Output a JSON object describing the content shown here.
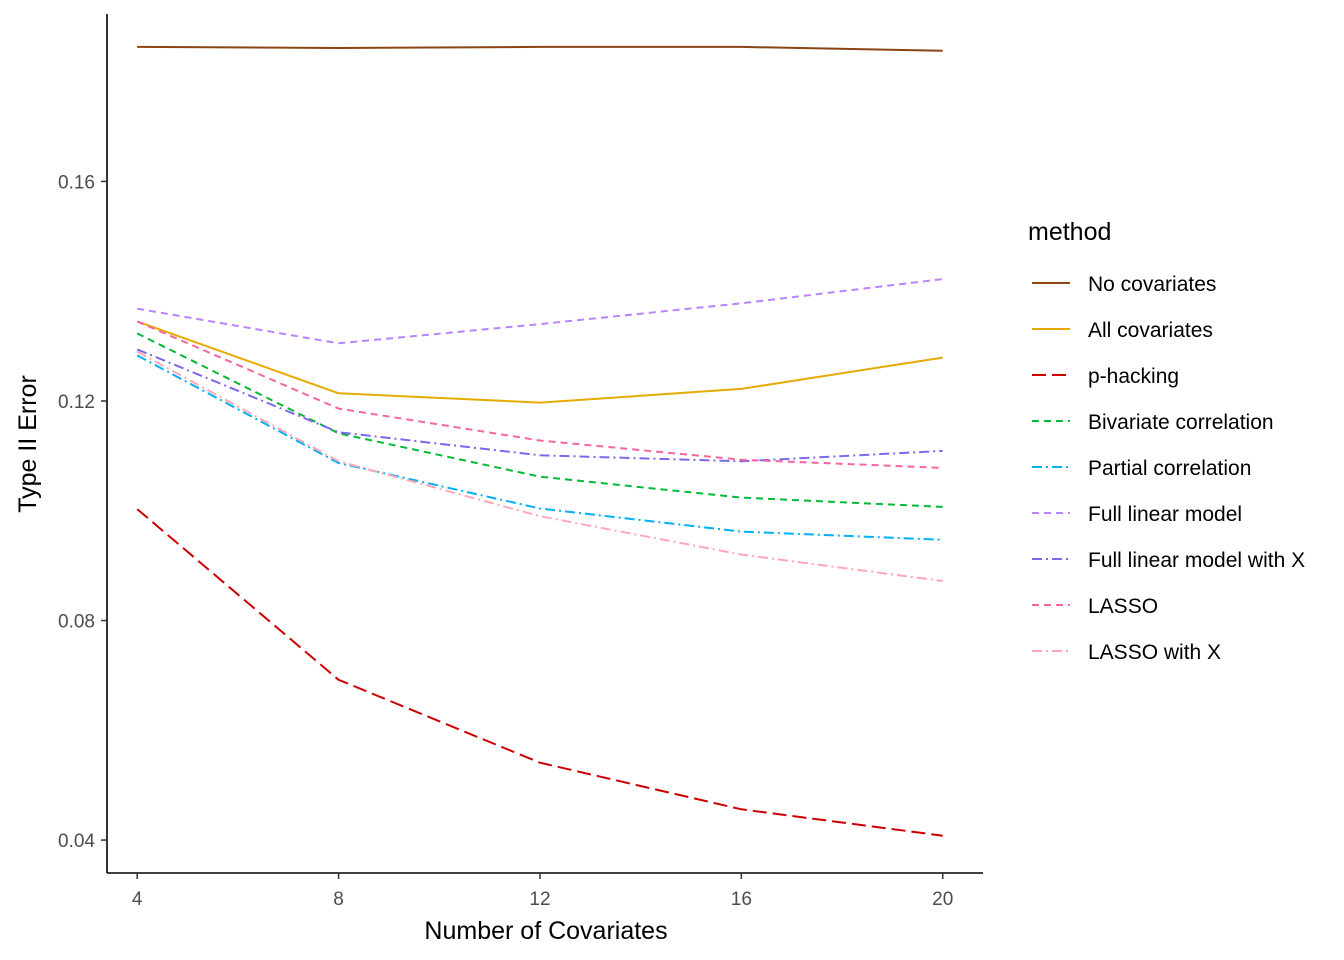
{
  "chart_data": {
    "type": "line",
    "title": "",
    "xlabel": "Number of Covariates",
    "ylabel": "Type II Error",
    "x": [
      4,
      8,
      12,
      16,
      20
    ],
    "xticks": [
      4,
      8,
      12,
      16,
      20
    ],
    "yticks": [
      0.04,
      0.08,
      0.12,
      0.16
    ],
    "ytick_labels": [
      "0.04",
      "0.08",
      "0.12",
      "0.16"
    ],
    "xlim": [
      3.4,
      20.8
    ],
    "ylim": [
      0.034,
      0.1905
    ],
    "grid": false,
    "legend": {
      "title": "method",
      "position": "right"
    },
    "series": [
      {
        "name": "No covariates",
        "color": "#8B4513",
        "dash": "solid",
        "values": [
          0.1845,
          0.1843,
          0.1845,
          0.1845,
          0.1838
        ]
      },
      {
        "name": "All covariates",
        "color": "#E6AB02",
        "dash": "solid",
        "values": [
          0.1345,
          0.1214,
          0.1197,
          0.1222,
          0.1279
        ]
      },
      {
        "name": "p-hacking",
        "color": "#CC0000",
        "dash": "longdash",
        "values": [
          0.1003,
          0.0692,
          0.0541,
          0.0456,
          0.0408
        ]
      },
      {
        "name": "Bivariate correlation",
        "color": "#00BA38",
        "dash": "dashed",
        "values": [
          0.1323,
          0.1141,
          0.1062,
          0.1024,
          0.1007
        ]
      },
      {
        "name": "Partial correlation",
        "color": "#00B0F6",
        "dash": "dotdash",
        "values": [
          0.1283,
          0.1087,
          0.1004,
          0.0962,
          0.0947
        ]
      },
      {
        "name": "Full linear model",
        "color": "#B983FF",
        "dash": "dashed",
        "values": [
          0.1368,
          0.1305,
          0.134,
          0.1378,
          0.1422
        ]
      },
      {
        "name": "Full linear model with X",
        "color": "#7B68EE",
        "dash": "dotdash",
        "values": [
          0.1294,
          0.1143,
          0.1101,
          0.109,
          0.1109
        ]
      },
      {
        "name": "LASSO",
        "color": "#F564A3",
        "dash": "dashed",
        "values": [
          0.1345,
          0.1186,
          0.1128,
          0.1093,
          0.1078
        ]
      },
      {
        "name": "LASSO with X",
        "color": "#FFA7B5",
        "dash": "dotdash",
        "values": [
          0.129,
          0.109,
          0.099,
          0.092,
          0.0872
        ]
      }
    ]
  }
}
